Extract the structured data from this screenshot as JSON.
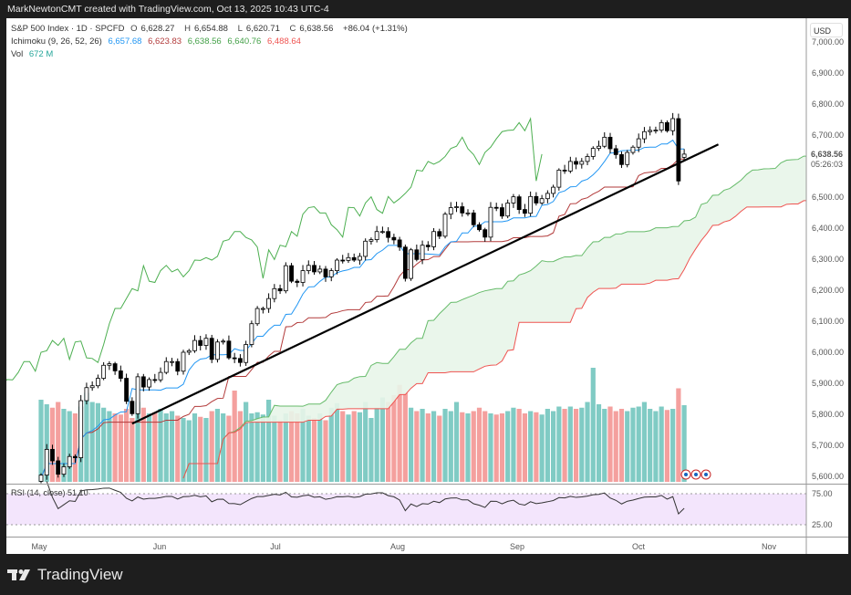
{
  "header": {
    "attribution": "MarkNewtonCMT created with TradingView.com, Oct 13, 2025 10:43 UTC-4"
  },
  "legend": {
    "symbol": "S&P 500 Index · 1D · SPCFD",
    "o_label": "O",
    "open": "6,628.27",
    "h_label": "H",
    "high": "6,654.88",
    "l_label": "L",
    "low": "6,620.71",
    "c_label": "C",
    "close": "6,638.56",
    "change": "+86.04 (+1.31%)",
    "ichimoku_label": "Ichimoku (9, 26, 52, 26)",
    "ichimoku_values": [
      "6,657.68",
      "6,623.83",
      "6,638.56",
      "6,640.76",
      "6,488.64"
    ],
    "vol_label": "Vol",
    "vol_value": "672 M"
  },
  "rsi": {
    "label": "RSI (14, close)",
    "value": "51.10",
    "levels": [
      "75.00",
      "25.00"
    ]
  },
  "price_axis": {
    "currency": "USD",
    "ticks": [
      "7,000.00",
      "6,900.00",
      "6,800.00",
      "6,700.00",
      "6,500.00",
      "6,400.00",
      "6,300.00",
      "6,200.00",
      "6,100.00",
      "6,000.00",
      "5,900.00",
      "5,800.00",
      "5,700.00",
      "5,600.00"
    ],
    "last_price": "6,638.56",
    "countdown": "05:26:03"
  },
  "time_axis": {
    "labels": [
      "May",
      "Jun",
      "Jul",
      "Aug",
      "Sep",
      "Oct",
      "Nov"
    ]
  },
  "brand": {
    "name": "TradingView"
  },
  "colors": {
    "tenkan": "#2196f3",
    "kijun": "#b23a3a",
    "span_a": "#66bb6a",
    "span_b": "#ef5350",
    "lagging": "#4caf50",
    "vol_up": "#80cbc4",
    "vol_down": "#f4a09e",
    "cloud": "#e8f5e9",
    "rsi_bg": "#f3e5fc"
  },
  "chart_data": {
    "type": "candlestick",
    "symbol": "S&P 500 Index",
    "interval": "1D",
    "x_range": [
      "2025-05-01",
      "2025-11"
    ],
    "ylim": [
      5600,
      7000
    ],
    "grid": false,
    "close": [
      5604,
      5687,
      5650,
      5607,
      5631,
      5664,
      5660,
      5844,
      5886,
      5892,
      5916,
      5958,
      5963,
      5940,
      5916,
      5842,
      5802,
      5921,
      5888,
      5912,
      5911,
      5935,
      5970,
      5970,
      5939,
      6000,
      6005,
      6038,
      6022,
      6045,
      5977,
      6033,
      6036,
      5982,
      5980,
      5967,
      6025,
      6092,
      6141,
      6141,
      6173,
      6205,
      6198,
      6279,
      6229,
      6225,
      6263,
      6280,
      6259,
      6268,
      6243,
      6263,
      6297,
      6296,
      6305,
      6297,
      6309,
      6358,
      6363,
      6389,
      6389,
      6370,
      6362,
      6339,
      6238,
      6330,
      6299,
      6345,
      6340,
      6389,
      6374,
      6445,
      6466,
      6469,
      6449,
      6449,
      6411,
      6395,
      6371,
      6467,
      6466,
      6439,
      6481,
      6501,
      6460,
      6448,
      6502,
      6481,
      6495,
      6512,
      6532,
      6587,
      6584,
      6615,
      6606,
      6615,
      6631,
      6657,
      6664,
      6693,
      6656,
      6637,
      6605,
      6644,
      6661,
      6688,
      6711,
      6715,
      6716,
      6740,
      6714,
      6753,
      6552,
      6638.56
    ],
    "volume_millions": [
      720,
      680,
      650,
      700,
      640,
      620,
      600,
      660,
      780,
      700,
      690,
      650,
      620,
      600,
      590,
      640,
      560,
      700,
      650,
      600,
      610,
      640,
      600,
      620,
      580,
      560,
      540,
      600,
      570,
      560,
      620,
      640,
      600,
      580,
      800,
      620,
      700,
      600,
      610,
      590,
      720,
      580,
      540,
      600,
      620,
      600,
      640,
      580,
      560,
      600,
      540,
      650,
      690,
      620,
      590,
      620,
      610,
      700,
      560,
      650,
      740,
      700,
      760,
      850,
      780,
      650,
      620,
      640,
      600,
      620,
      580,
      640,
      620,
      700,
      610,
      600,
      620,
      650,
      620,
      600,
      590,
      600,
      620,
      650,
      640,
      600,
      620,
      610,
      590,
      640,
      620,
      660,
      640,
      660,
      640,
      650,
      700,
      1000,
      680,
      640,
      660,
      620,
      640,
      620,
      650,
      660,
      700,
      640,
      620,
      660,
      630,
      640,
      820,
      672
    ],
    "last_bar": {
      "open": 6628.27,
      "high": 6654.88,
      "low": 6620.71,
      "close": 6638.56
    },
    "ichimoku": {
      "conversion": 9,
      "base": 26,
      "span_b": 52,
      "displacement": 26
    },
    "rsi_period": 14,
    "trendline": [
      {
        "date": "2025-05-23",
        "price": 5770
      },
      {
        "date": "2025-10-21",
        "price": 6670
      }
    ]
  }
}
